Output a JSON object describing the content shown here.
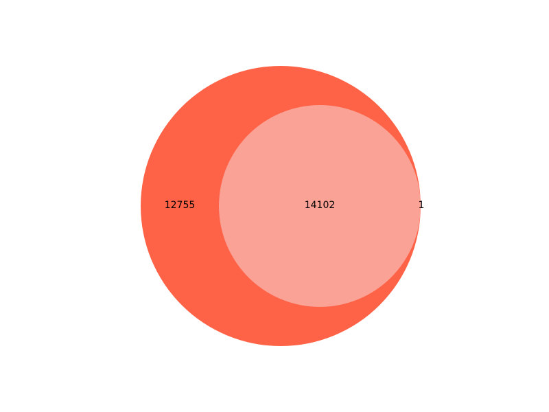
{
  "diagram": {
    "type": "venn2",
    "sets": [
      {
        "color": "#ff6347"
      },
      {
        "color": "#faa59b"
      }
    ],
    "regions": {
      "only_a": "12755",
      "a_and_b": "14102",
      "only_b": "1"
    }
  }
}
